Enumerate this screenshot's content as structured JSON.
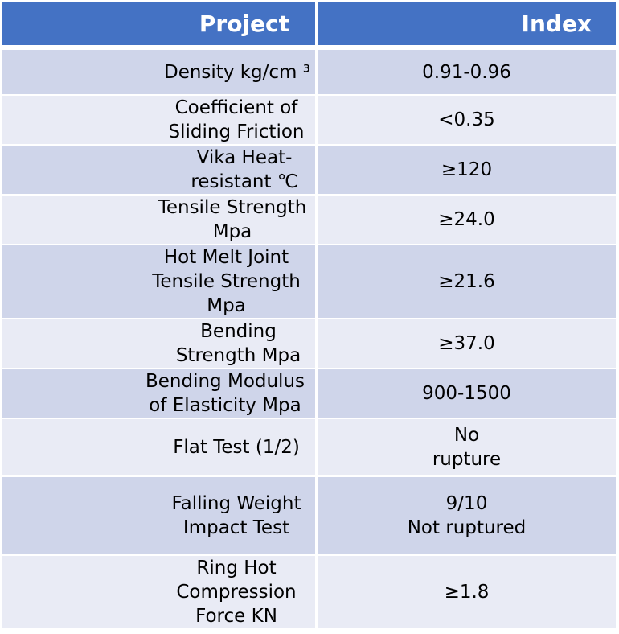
{
  "table": {
    "header": {
      "project": "Project",
      "index": "Index"
    },
    "rows": [
      {
        "parameter": "Density kg/cm ³",
        "value": "0.91-0.96"
      },
      {
        "parameter": "Coefficient of Sliding Friction",
        "value": "<0.35"
      },
      {
        "parameter": "Vika Heat-resistant ℃",
        "value": "≥120"
      },
      {
        "parameter": "Tensile Strength Mpa",
        "value": "≥24.0"
      },
      {
        "parameter": "Hot Melt Joint Tensile Strength Mpa",
        "value": "≥21.6"
      },
      {
        "parameter": "Bending Strength Mpa",
        "value": "≥37.0"
      },
      {
        "parameter": "Bending Modulus of Elasticity Mpa",
        "value": "900-1500"
      },
      {
        "parameter": "Flat Test (1/2)",
        "value_line1": "No",
        "value_line2": "rupture"
      },
      {
        "parameter": "Falling Weight Impact Test",
        "value_line1": "9/10",
        "value_line2": "Not ruptured"
      },
      {
        "parameter": "Ring Hot Compression Force KN",
        "value": "≥1.8"
      }
    ]
  },
  "colors": {
    "header_bg": "#4472c4",
    "row_odd": "#cfd5ea",
    "row_even": "#e9ebf5"
  }
}
